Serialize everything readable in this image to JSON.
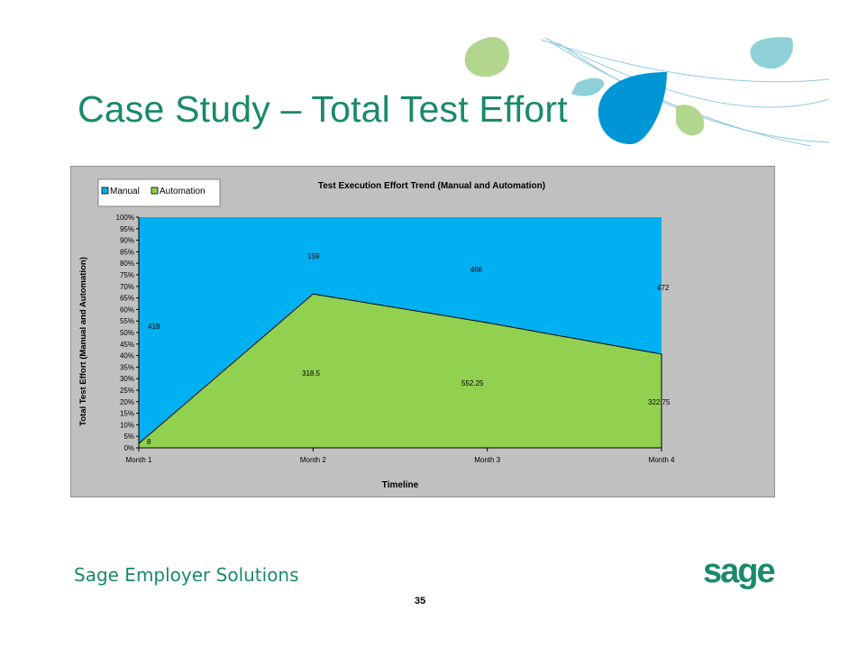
{
  "slide": {
    "title": "Case Study – Total Test Effort",
    "footer_brand": "Sage Employer Solutions",
    "page_number": "35",
    "logo_text": "sage"
  },
  "colors": {
    "title": "#1a8a6a",
    "manual": "#00b0f0",
    "automation": "#92d050",
    "plot_background": "#c0c0c0"
  },
  "chart_data": {
    "type": "area",
    "stacked": "percent",
    "title": "Test Execution Effort Trend (Manual  and Automation)",
    "xlabel": "Timeline",
    "ylabel": "Total Test Effort (Manual and Automation)",
    "categories": [
      "Month 1",
      "Month 2",
      "Month 3",
      "Month 4"
    ],
    "series": [
      {
        "name": "Automation",
        "values": [
          8,
          318.5,
          552.25,
          322.75
        ],
        "labels": [
          "8",
          "318.5",
          "552.25",
          "322.75"
        ],
        "color": "#92d050"
      },
      {
        "name": "Manual",
        "values": [
          418,
          159,
          466,
          472
        ],
        "labels": [
          "418",
          "159",
          "466",
          "472"
        ],
        "color": "#00b0f0"
      }
    ],
    "y_ticks": [
      "0%",
      "5%",
      "10%",
      "15%",
      "20%",
      "25%",
      "30%",
      "35%",
      "40%",
      "45%",
      "50%",
      "55%",
      "60%",
      "65%",
      "70%",
      "75%",
      "80%",
      "85%",
      "90%",
      "95%",
      "100%"
    ],
    "ylim": [
      0,
      100
    ],
    "legend": {
      "position": "top-left",
      "entries": [
        "Manual",
        "Automation"
      ]
    },
    "grid": false
  }
}
